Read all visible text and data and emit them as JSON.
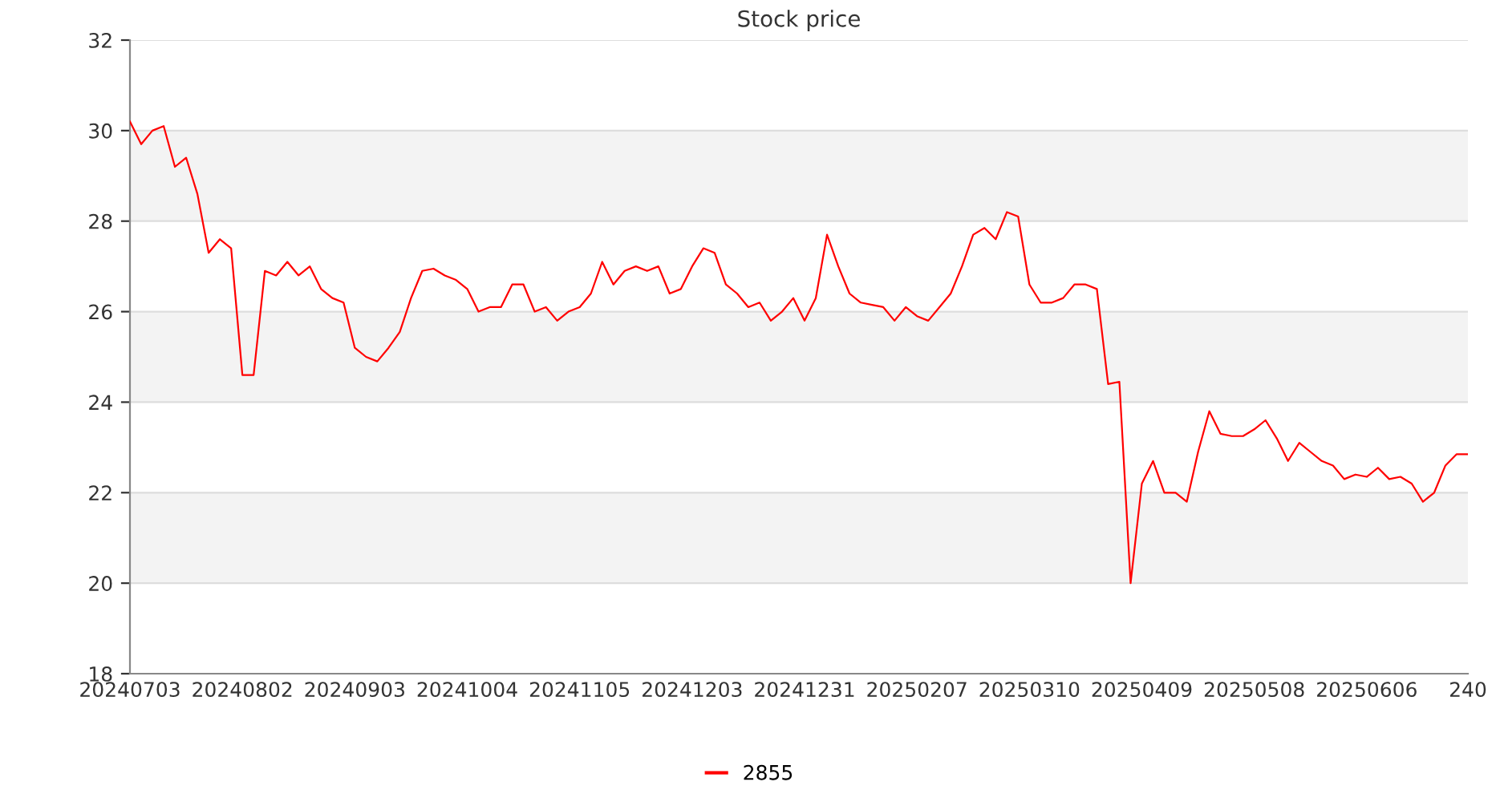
{
  "chart_data": {
    "type": "line",
    "title": "Stock price",
    "categories": [
      "20240703",
      null,
      null,
      null,
      null,
      null,
      null,
      null,
      null,
      null,
      "20240802",
      null,
      null,
      null,
      null,
      null,
      null,
      null,
      null,
      null,
      "20240903",
      null,
      null,
      null,
      null,
      null,
      null,
      null,
      null,
      null,
      "20241004",
      null,
      null,
      null,
      null,
      null,
      null,
      null,
      null,
      null,
      "20241105",
      null,
      null,
      null,
      null,
      null,
      null,
      null,
      null,
      null,
      "20241203",
      null,
      null,
      null,
      null,
      null,
      null,
      null,
      null,
      null,
      "20241231",
      null,
      null,
      null,
      null,
      null,
      null,
      null,
      null,
      null,
      "20250207",
      null,
      null,
      null,
      null,
      null,
      null,
      null,
      null,
      null,
      "20250310",
      null,
      null,
      null,
      null,
      null,
      null,
      null,
      null,
      null,
      "20250409",
      null,
      null,
      null,
      null,
      null,
      null,
      null,
      null,
      null,
      "20250508",
      null,
      null,
      null,
      null,
      null,
      null,
      null,
      null,
      null,
      "20250606",
      null,
      null,
      null,
      null,
      null,
      null,
      null,
      null,
      "240"
    ],
    "series": [
      {
        "name": "2855",
        "color": "#ff0000",
        "values": [
          30.2,
          29.7,
          30.0,
          30.1,
          29.2,
          29.4,
          28.6,
          27.3,
          27.6,
          27.4,
          24.6,
          24.6,
          26.9,
          26.8,
          27.1,
          26.8,
          27.0,
          26.5,
          26.3,
          26.2,
          25.2,
          25.0,
          24.9,
          25.2,
          25.55,
          26.3,
          26.9,
          26.95,
          26.8,
          26.7,
          26.5,
          26.0,
          26.1,
          26.1,
          26.6,
          26.6,
          26.0,
          26.1,
          25.8,
          26.0,
          26.1,
          26.4,
          27.1,
          26.6,
          26.9,
          27.0,
          26.9,
          27.0,
          26.4,
          26.5,
          27.0,
          27.4,
          27.3,
          26.6,
          26.4,
          26.1,
          26.2,
          25.8,
          26.0,
          26.3,
          25.8,
          26.3,
          27.7,
          27.0,
          26.4,
          26.2,
          26.15,
          26.1,
          25.8,
          26.1,
          25.9,
          25.8,
          26.1,
          26.4,
          27.0,
          27.7,
          27.85,
          27.6,
          28.2,
          28.1,
          26.6,
          26.2,
          26.2,
          26.3,
          26.6,
          26.6,
          26.5,
          24.4,
          24.45,
          20.0,
          22.2,
          22.7,
          22.0,
          22.0,
          21.8,
          22.9,
          23.8,
          23.3,
          23.25,
          23.25,
          23.4,
          23.6,
          23.2,
          22.7,
          23.1,
          22.9,
          22.7,
          22.6,
          22.3,
          22.4,
          22.35,
          22.55,
          22.3,
          22.35,
          22.2,
          21.8,
          22.0,
          22.6,
          22.85,
          22.85
        ]
      }
    ],
    "ylim": [
      18,
      32
    ],
    "yticks": [
      18,
      20,
      22,
      24,
      26,
      28,
      30,
      32
    ],
    "grid": "y",
    "legend": "bottom",
    "marker": "none",
    "line_style": "solid",
    "bands": [
      {
        "axis": "y",
        "from": 20,
        "to": 22,
        "color": "#f3f3f3"
      },
      {
        "axis": "y",
        "from": 24,
        "to": 26,
        "color": "#f3f3f3"
      },
      {
        "axis": "y",
        "from": 28,
        "to": 30,
        "color": "#f3f3f3"
      }
    ]
  }
}
